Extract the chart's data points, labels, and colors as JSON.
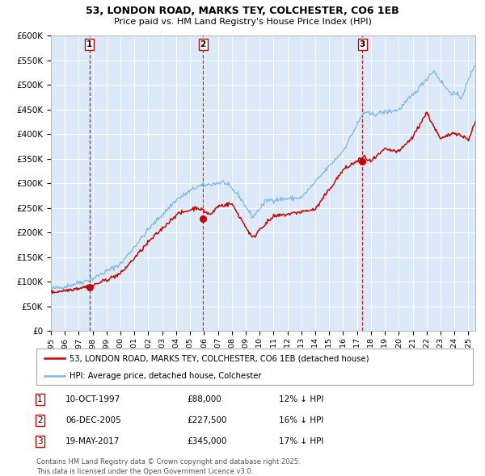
{
  "title": "53, LONDON ROAD, MARKS TEY, COLCHESTER, CO6 1EB",
  "subtitle": "Price paid vs. HM Land Registry's House Price Index (HPI)",
  "legend_label_red": "53, LONDON ROAD, MARKS TEY, COLCHESTER, CO6 1EB (detached house)",
  "legend_label_blue": "HPI: Average price, detached house, Colchester",
  "footer": "Contains HM Land Registry data © Crown copyright and database right 2025.\nThis data is licensed under the Open Government Licence v3.0.",
  "transactions": [
    {
      "num": 1,
      "date": "10-OCT-1997",
      "price": 88000,
      "hpi_diff": "12% ↓ HPI",
      "date_val": 1997.78
    },
    {
      "num": 2,
      "date": "06-DEC-2005",
      "price": 227500,
      "hpi_diff": "16% ↓ HPI",
      "date_val": 2005.93
    },
    {
      "num": 3,
      "date": "19-MAY-2017",
      "price": 345000,
      "hpi_diff": "17% ↓ HPI",
      "date_val": 2017.38
    }
  ],
  "ylim": [
    0,
    600000
  ],
  "yticks": [
    0,
    50000,
    100000,
    150000,
    200000,
    250000,
    300000,
    350000,
    400000,
    450000,
    500000,
    550000,
    600000
  ],
  "xlim": [
    1995,
    2025.5
  ],
  "background_color": "#dce9f8",
  "red_color": "#cc0000",
  "blue_color": "#7ab8e8",
  "grid_color": "#ffffff"
}
